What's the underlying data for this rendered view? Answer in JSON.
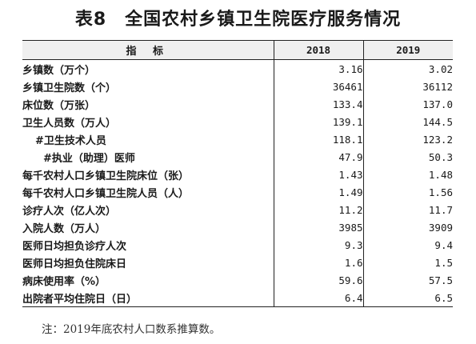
{
  "title": "表8　全国农村乡镇卫生院医疗服务情况",
  "table": {
    "header": {
      "indicator": "指 标",
      "y2018": "2018",
      "y2019": "2019"
    },
    "rows": [
      {
        "label": "乡镇数（万个）",
        "v2018": "3.16",
        "v2019": "3.02",
        "indent": 0
      },
      {
        "label": "乡镇卫生院数（个）",
        "v2018": "36461",
        "v2019": "36112",
        "indent": 0
      },
      {
        "label": "床位数（万张）",
        "v2018": "133.4",
        "v2019": "137.0",
        "indent": 0
      },
      {
        "label": "卫生人员数（万人）",
        "v2018": "139.1",
        "v2019": "144.5",
        "indent": 0
      },
      {
        "label": "#卫生技术人员",
        "v2018": "118.1",
        "v2019": "123.2",
        "indent": 1
      },
      {
        "label": "#执业（助理）医师",
        "v2018": "47.9",
        "v2019": "50.3",
        "indent": 2
      },
      {
        "label": "每千农村人口乡镇卫生院床位（张）",
        "v2018": "1.43",
        "v2019": "1.48",
        "indent": 0
      },
      {
        "label": "每千农村人口乡镇卫生院人员（人）",
        "v2018": "1.49",
        "v2019": "1.56",
        "indent": 0
      },
      {
        "label": "诊疗人次（亿人次）",
        "v2018": "11.2",
        "v2019": "11.7",
        "indent": 0
      },
      {
        "label": "入院人数（万人）",
        "v2018": "3985",
        "v2019": "3909",
        "indent": 0
      },
      {
        "label": "医师日均担负诊疗人次",
        "v2018": "9.3",
        "v2019": "9.4",
        "indent": 0
      },
      {
        "label": "医师日均担负住院床日",
        "v2018": "1.6",
        "v2019": "1.5",
        "indent": 0
      },
      {
        "label": "病床使用率（%）",
        "v2018": "59.6",
        "v2019": "57.5",
        "indent": 0
      },
      {
        "label": "出院者平均住院日（日）",
        "v2018": "6.4",
        "v2019": "6.5",
        "indent": 0
      }
    ]
  },
  "note": "注：2019年底农村人口数系推算数。"
}
